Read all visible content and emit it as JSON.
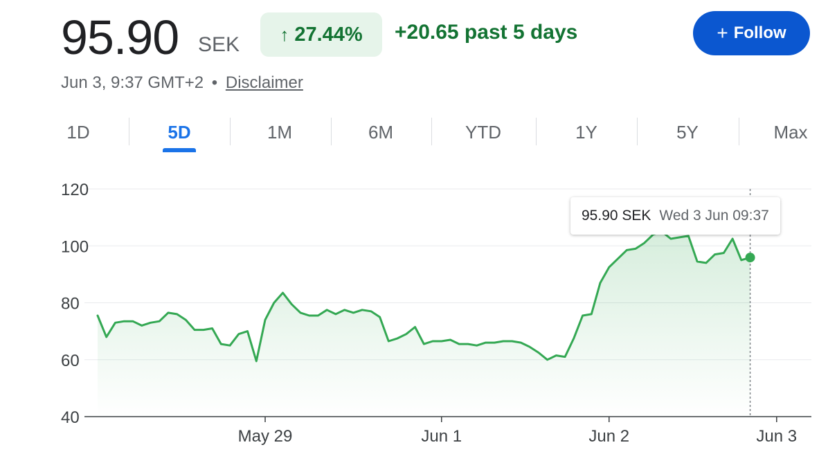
{
  "quote": {
    "price": "95.90",
    "currency": "SEK",
    "change_pct": "27.44%",
    "change_abs": "+20.65 past 5 days",
    "timestamp": "Jun 3, 9:37 GMT+2",
    "separator": "•",
    "disclaimer": "Disclaimer",
    "follow_label": "Follow",
    "up_color": "#137333",
    "chip_bg": "#e6f4ea"
  },
  "tabs": [
    {
      "label": "1D",
      "active": false
    },
    {
      "label": "5D",
      "active": true
    },
    {
      "label": "1M",
      "active": false
    },
    {
      "label": "6M",
      "active": false
    },
    {
      "label": "YTD",
      "active": false
    },
    {
      "label": "1Y",
      "active": false
    },
    {
      "label": "5Y",
      "active": false
    },
    {
      "label": "Max",
      "active": false
    }
  ],
  "tooltip": {
    "value": "95.90 SEK",
    "time": "Wed 3 Jun 09:37"
  },
  "chart_data": {
    "type": "area",
    "line_color": "#34a853",
    "ylim": [
      40,
      120
    ],
    "y_ticks": [
      120,
      100,
      80,
      60,
      40
    ],
    "x_ticks": [
      {
        "label": "May 29",
        "x": 19
      },
      {
        "label": "Jun 1",
        "x": 39
      },
      {
        "label": "Jun 2",
        "x": 58
      },
      {
        "label": "Jun 3",
        "x": 77
      }
    ],
    "xlim": [
      0,
      80
    ],
    "grid": true,
    "series": [
      {
        "values": [
          75.5,
          68,
          73,
          73.5,
          73.5,
          72,
          73,
          73.5,
          76.5,
          76,
          74,
          70.5,
          70.5,
          71,
          65.5,
          65,
          69,
          70,
          59.5,
          74,
          80,
          83.5,
          79.5,
          76.5,
          75.5,
          75.5,
          77.5,
          76,
          77.5,
          76.5,
          77.5,
          77,
          75,
          66.5,
          67.5,
          69,
          71.5,
          65.5,
          66.5,
          66.5,
          67,
          65.5,
          65.5,
          65,
          66,
          66,
          66.5,
          66.5,
          66,
          64.5,
          62.5,
          60,
          61.5,
          61,
          67.5,
          75.5,
          76,
          87,
          92.5,
          95.5,
          98.5,
          99,
          101,
          104,
          105,
          102.5,
          103,
          103.5,
          94.5,
          94,
          97,
          97.5,
          102.5,
          95,
          95.9
        ]
      }
    ]
  }
}
